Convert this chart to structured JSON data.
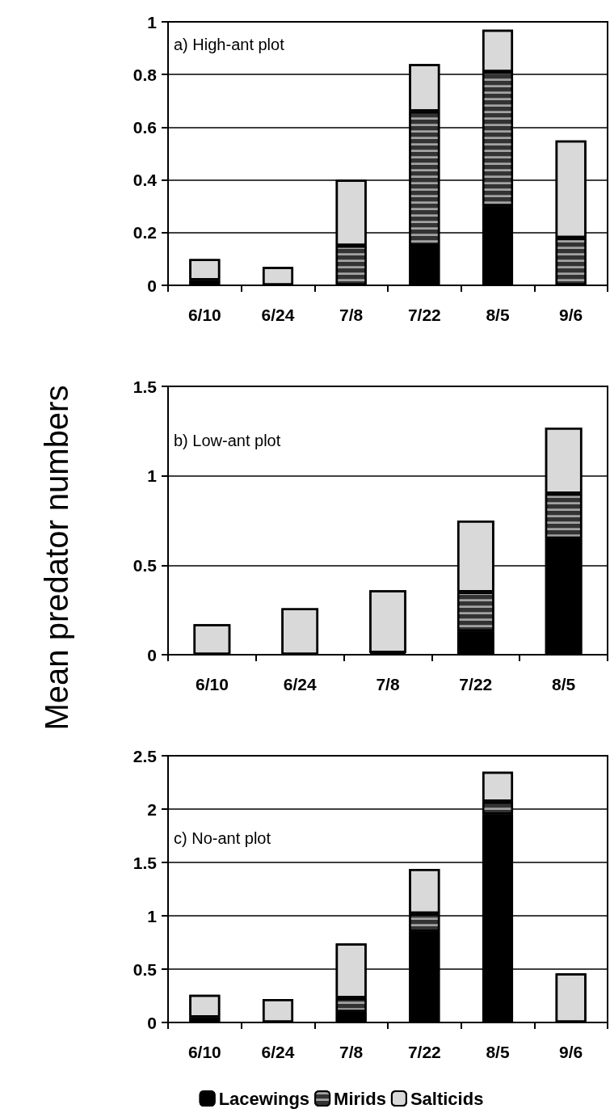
{
  "chart_data": [
    {
      "type": "bar",
      "title": "a) High-ant plot",
      "categories": [
        "6/10",
        "6/24",
        "7/8",
        "7/22",
        "8/5",
        "9/6"
      ],
      "stacked": true,
      "ylim": [
        0,
        1
      ],
      "yticks": [
        0,
        0.2,
        0.4,
        0.6,
        0.8,
        1
      ],
      "grid": "y",
      "legend": false,
      "series": [
        {
          "color": "#000000",
          "values": [
            0.02,
            0,
            0,
            0.15,
            0.3,
            0
          ]
        },
        {
          "color": "#333333",
          "values": [
            0,
            0,
            0.15,
            0.51,
            0.51,
            0.18
          ]
        },
        {
          "color": "#d9d9d9",
          "values": [
            0.08,
            0.07,
            0.25,
            0.18,
            0.16,
            0.37
          ]
        }
      ]
    },
    {
      "type": "bar",
      "title": "b) Low-ant plot",
      "ylabel": "Mean predator numbers",
      "categories": [
        "6/10",
        "6/24",
        "7/8",
        "7/22",
        "8/5"
      ],
      "stacked": true,
      "ylim": [
        0,
        1.5
      ],
      "yticks": [
        0,
        0.5,
        1,
        1.5
      ],
      "grid": "y",
      "legend": false,
      "series": [
        {
          "color": "#000000",
          "values": [
            0,
            0,
            0.01,
            0.13,
            0.65
          ]
        },
        {
          "color": "#333333",
          "values": [
            0,
            0,
            0,
            0.22,
            0.25
          ]
        },
        {
          "color": "#d9d9d9",
          "values": [
            0.17,
            0.26,
            0.35,
            0.4,
            0.37
          ]
        }
      ]
    },
    {
      "type": "bar",
      "title": "c) No-ant plot",
      "categories": [
        "6/10",
        "6/24",
        "7/8",
        "7/22",
        "8/5",
        "9/6"
      ],
      "stacked": true,
      "ylim": [
        0,
        2.5
      ],
      "yticks": [
        0,
        0.5,
        1,
        1.5,
        2,
        2.5
      ],
      "grid": "y",
      "legend": "bottom",
      "series": [
        {
          "name": "Lacewings",
          "color": "#000000",
          "values": [
            0.05,
            0,
            0.1,
            0.85,
            1.95,
            null
          ]
        },
        {
          "name": "Mirids",
          "color": "#333333",
          "values": [
            0,
            0,
            0.13,
            0.17,
            0.12,
            0
          ]
        },
        {
          "name": "Salticids",
          "color": "#d9d9d9",
          "values": [
            0.21,
            0.22,
            0.51,
            0.42,
            0.28,
            0.46
          ]
        }
      ]
    }
  ]
}
